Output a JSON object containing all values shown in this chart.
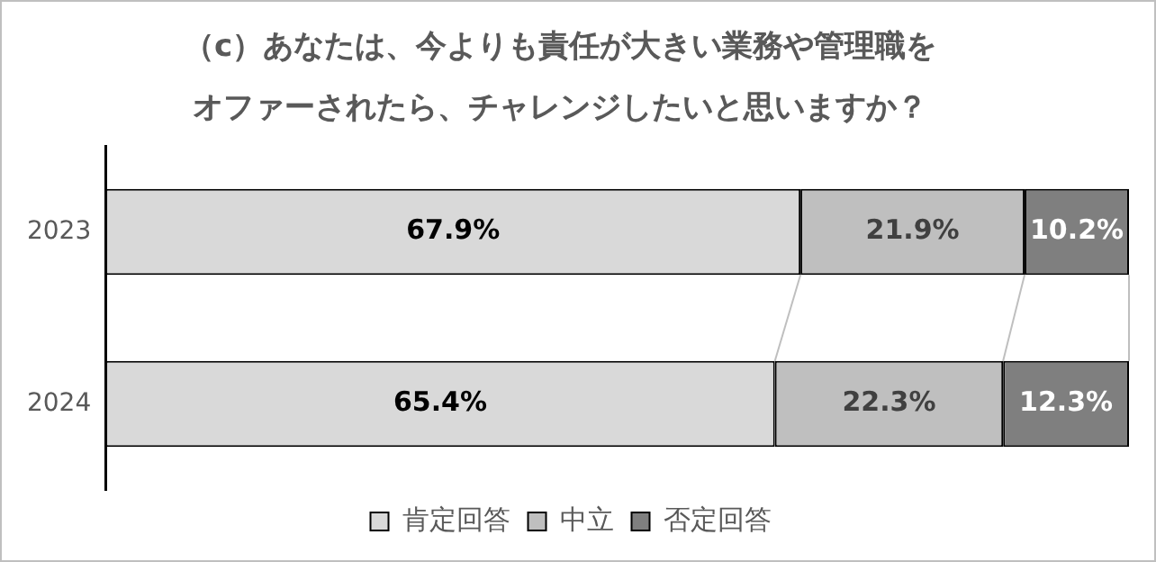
{
  "chart_data": {
    "type": "bar",
    "orientation": "horizontal",
    "stacked": true,
    "title": "（c）あなたは、今よりも責任が大きい業務や管理職をオファーされたら、チャレンジしたいと思いますか？",
    "categories": [
      "2023",
      "2024"
    ],
    "series": [
      {
        "name": "肯定回答",
        "color": "#d9d9d9",
        "values": [
          67.9,
          65.4
        ],
        "value_labels": [
          "67.9%",
          "65.4%"
        ]
      },
      {
        "name": "中立",
        "color": "#bfbfbf",
        "values": [
          21.9,
          22.3
        ],
        "value_labels": [
          "21.9%",
          "22.3%"
        ]
      },
      {
        "name": "否定回答",
        "color": "#7f7f7f",
        "values": [
          10.2,
          12.3
        ],
        "value_labels": [
          "10.2%",
          "12.3%"
        ]
      }
    ],
    "xlim": [
      0,
      100
    ],
    "tick_labels": "y",
    "legend": "bottom"
  }
}
